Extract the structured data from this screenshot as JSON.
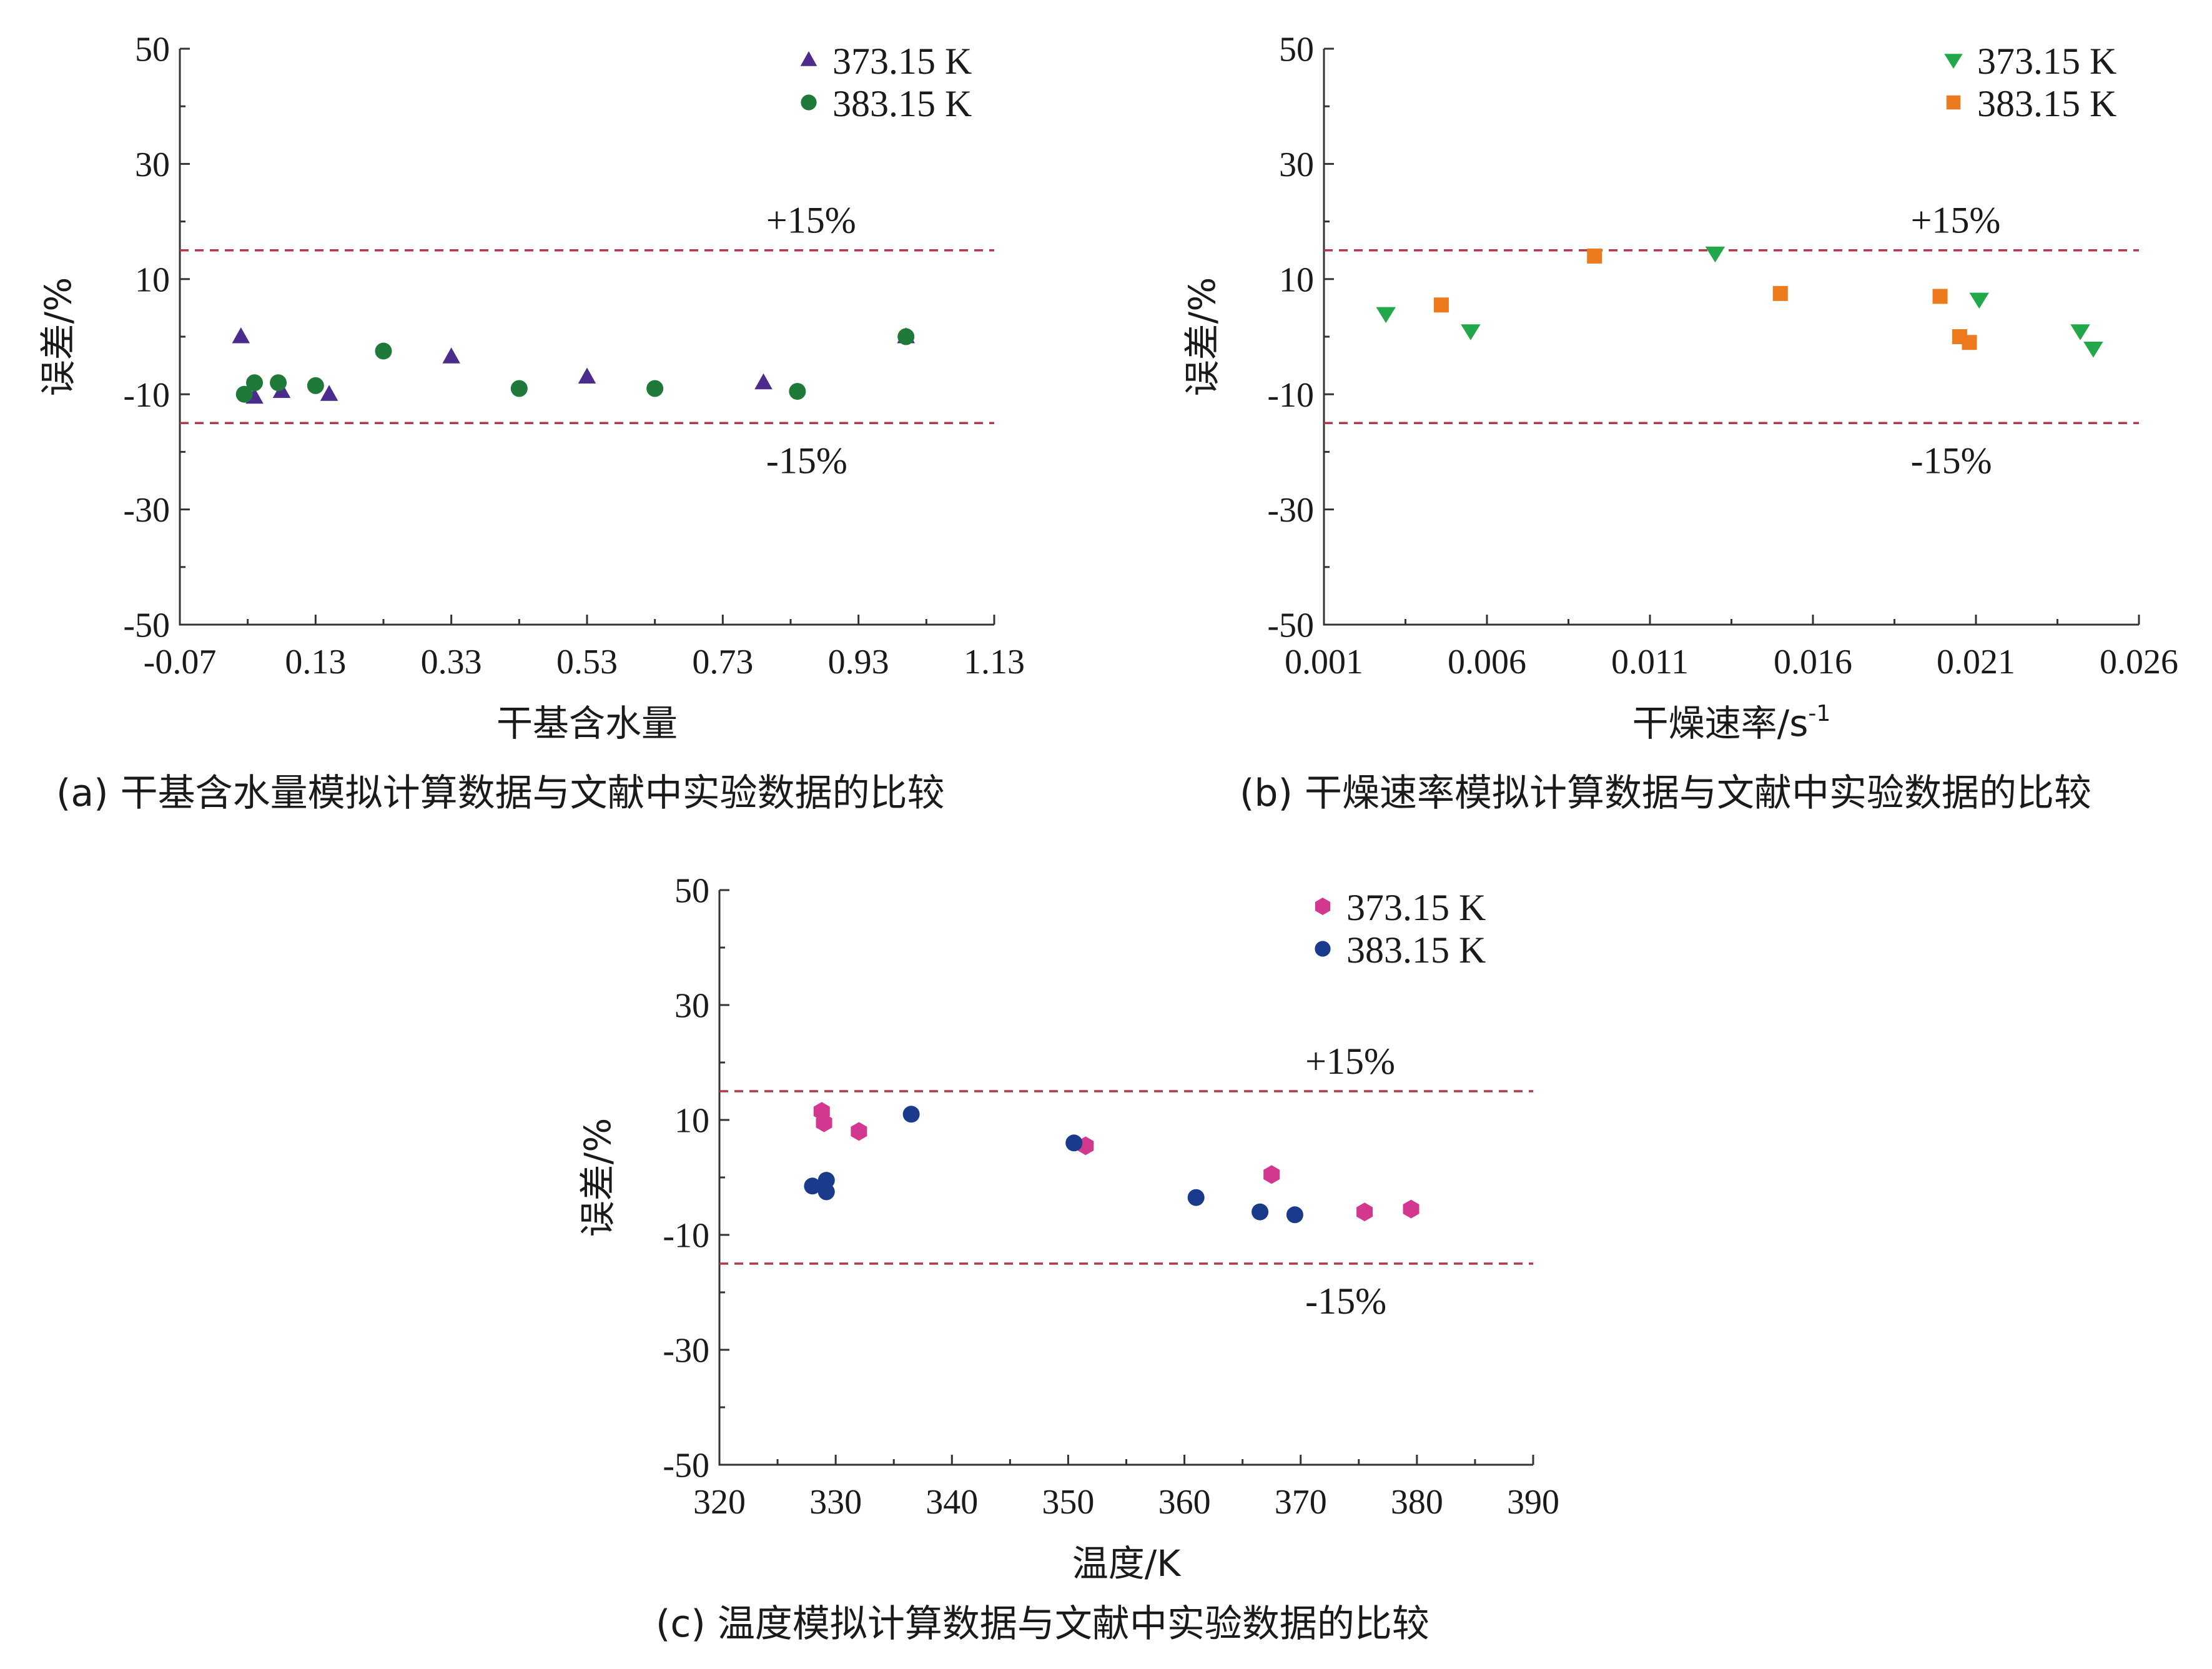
{
  "charts": [
    {
      "caption": "(a) 干基含水量模拟计算数据与文献中实验数据的比较",
      "chart_data": {
        "type": "scatter",
        "xlabel": "干基含水量",
        "ylabel": "误差/%",
        "xlim": [
          -0.07,
          1.13
        ],
        "ylim": [
          -50,
          50
        ],
        "xticks": [
          "-0.07",
          "0.13",
          "0.33",
          "0.53",
          "0.73",
          "0.93",
          "1.13"
        ],
        "yticks": [
          "50",
          "30",
          "10",
          "-10",
          "-30",
          "-50"
        ],
        "ref_lines": [
          {
            "y": 15,
            "label": "+15%"
          },
          {
            "y": -15,
            "label": "-15%"
          }
        ],
        "legend": "top-right",
        "series": [
          {
            "name": "373.15 K",
            "marker": "triangle",
            "color": "#4b2b8c",
            "points": [
              [
                0.02,
                0
              ],
              [
                0.04,
                -10.5
              ],
              [
                0.08,
                -9.5
              ],
              [
                0.15,
                -10
              ],
              [
                0.33,
                -3.5
              ],
              [
                0.53,
                -7
              ],
              [
                0.79,
                -8
              ],
              [
                1.0,
                0
              ]
            ]
          },
          {
            "name": "383.15 K",
            "marker": "circle",
            "color": "#1f7a3a",
            "points": [
              [
                0.025,
                -10
              ],
              [
                0.04,
                -8
              ],
              [
                0.075,
                -8
              ],
              [
                0.13,
                -8.5
              ],
              [
                0.23,
                -2.5
              ],
              [
                0.43,
                -9
              ],
              [
                0.63,
                -9
              ],
              [
                0.84,
                -9.5
              ],
              [
                1.0,
                0
              ]
            ]
          }
        ]
      }
    },
    {
      "caption": "(b) 干燥速率模拟计算数据与文献中实验数据的比较",
      "chart_data": {
        "type": "scatter",
        "xlabel": "干燥速率/s",
        "xlabel_sup": "-1",
        "ylabel": "误差/%",
        "xlim": [
          0.001,
          0.026
        ],
        "ylim": [
          -50,
          50
        ],
        "xticks": [
          "0.001",
          "0.006",
          "0.011",
          "0.016",
          "0.021",
          "0.026"
        ],
        "yticks": [
          "50",
          "30",
          "10",
          "-10",
          "-30",
          "-50"
        ],
        "ref_lines": [
          {
            "y": 15,
            "label": "+15%"
          },
          {
            "y": -15,
            "label": "-15%"
          }
        ],
        "legend": "top-right",
        "series": [
          {
            "name": "373.15 K",
            "marker": "triangle-down",
            "color": "#22a84a",
            "points": [
              [
                0.0029,
                4
              ],
              [
                0.0055,
                1
              ],
              [
                0.013,
                14.5
              ],
              [
                0.0211,
                6.5
              ],
              [
                0.0242,
                1
              ],
              [
                0.0246,
                -2
              ]
            ]
          },
          {
            "name": "383.15 K",
            "marker": "square",
            "color": "#ee7a1e",
            "points": [
              [
                0.0046,
                5.5
              ],
              [
                0.0093,
                14
              ],
              [
                0.015,
                7.5
              ],
              [
                0.0199,
                7
              ],
              [
                0.0205,
                0
              ],
              [
                0.0208,
                -1
              ]
            ]
          }
        ]
      }
    },
    {
      "caption": "(c) 温度模拟计算数据与文献中实验数据的比较",
      "chart_data": {
        "type": "scatter",
        "xlabel": "温度/K",
        "ylabel": "误差/%",
        "xlim": [
          320,
          390
        ],
        "ylim": [
          -50,
          50
        ],
        "xticks": [
          "320",
          "330",
          "340",
          "350",
          "360",
          "370",
          "380",
          "390"
        ],
        "yticks": [
          "50",
          "30",
          "10",
          "-10",
          "-30",
          "-50"
        ],
        "ref_lines": [
          {
            "y": 15,
            "label": "+15%"
          },
          {
            "y": -15,
            "label": "-15%"
          }
        ],
        "legend": "top-right",
        "series": [
          {
            "name": "373.15 K",
            "marker": "hexagon",
            "color": "#d2388f",
            "points": [
              [
                328.8,
                11.5
              ],
              [
                329,
                9.5
              ],
              [
                332,
                8
              ],
              [
                351.5,
                5.5
              ],
              [
                367.5,
                0.5
              ],
              [
                375.5,
                -6
              ],
              [
                379.5,
                -5.5
              ]
            ]
          },
          {
            "name": "383.15 K",
            "marker": "circle",
            "color": "#1a3a8c",
            "points": [
              [
                328,
                -1.5
              ],
              [
                329.2,
                -0.5
              ],
              [
                329.2,
                -2.5
              ],
              [
                336.5,
                11
              ],
              [
                350.5,
                6
              ],
              [
                361,
                -3.5
              ],
              [
                366.5,
                -6
              ],
              [
                369.5,
                -6.5
              ]
            ]
          }
        ]
      }
    }
  ]
}
